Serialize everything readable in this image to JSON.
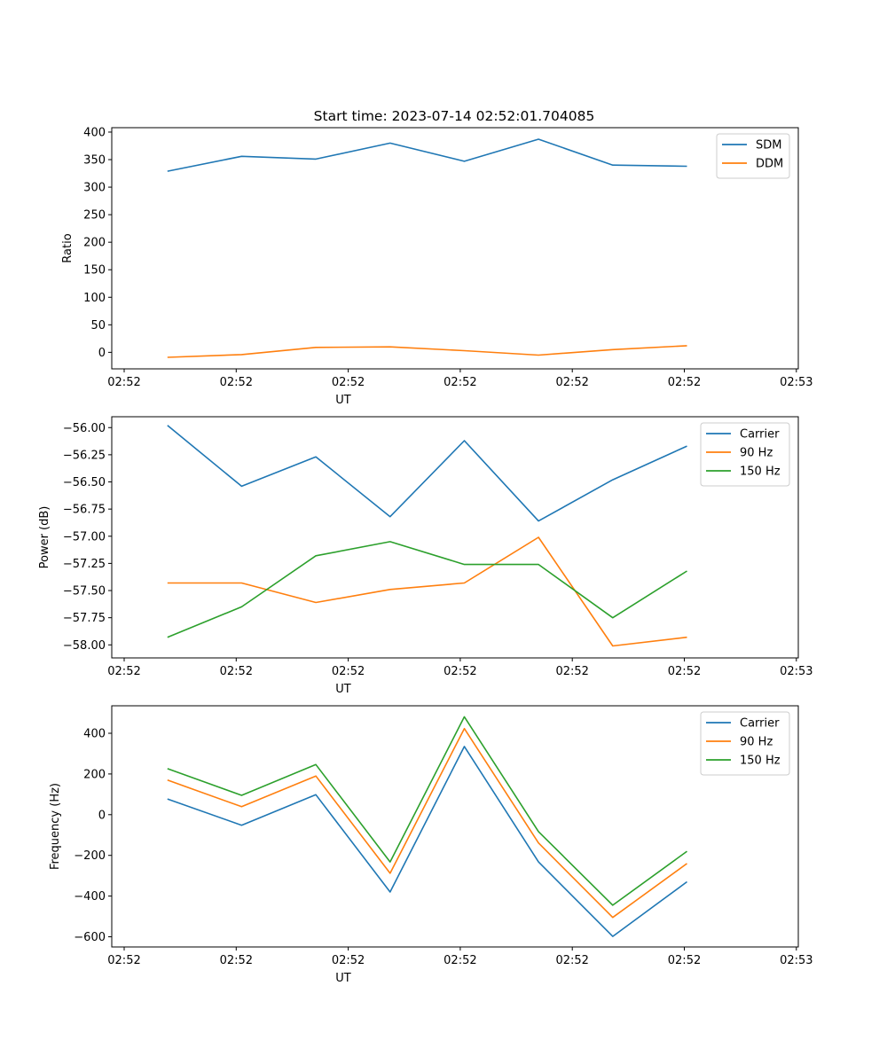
{
  "figure": {
    "title": "Start time: 2023-07-14 02:52:01.704085"
  },
  "chart_data": [
    {
      "type": "line",
      "title": "Start time: 2023-07-14 02:52:01.704085",
      "xlabel": "UT",
      "ylabel": "Ratio",
      "x_tick_labels": [
        "02:52",
        "02:52",
        "02:52",
        "02:52",
        "02:52",
        "02:52",
        "02:53"
      ],
      "x": [
        1,
        2,
        3,
        4,
        5,
        6,
        7,
        8
      ],
      "xlim": [
        0.25,
        9.5
      ],
      "ylim": [
        -30,
        408
      ],
      "y_ticks": [
        0,
        50,
        100,
        150,
        200,
        250,
        300,
        350,
        400
      ],
      "y_tick_labels": [
        "0",
        "50",
        "100",
        "150",
        "200",
        "250",
        "300",
        "350",
        "400"
      ],
      "legend_position": "top-right",
      "series": [
        {
          "name": "SDM",
          "color": "#1f77b4",
          "values": [
            329,
            356,
            351,
            380,
            347,
            387,
            340,
            338
          ]
        },
        {
          "name": "DDM",
          "color": "#ff7f0e",
          "values": [
            -9,
            -4,
            9,
            10,
            3,
            -5,
            5,
            12
          ]
        }
      ]
    },
    {
      "type": "line",
      "title": "",
      "xlabel": "UT",
      "ylabel": "Power (dB)",
      "x_tick_labels": [
        "02:52",
        "02:52",
        "02:52",
        "02:52",
        "02:52",
        "02:52",
        "02:53"
      ],
      "x": [
        1,
        2,
        3,
        4,
        5,
        6,
        7,
        8
      ],
      "xlim": [
        0.25,
        9.5
      ],
      "ylim": [
        -58.12,
        -55.9
      ],
      "y_ticks": [
        -58.0,
        -57.75,
        -57.5,
        -57.25,
        -57.0,
        -56.75,
        -56.5,
        -56.25,
        -56.0
      ],
      "y_tick_labels": [
        "−58.00",
        "−57.75",
        "−57.50",
        "−57.25",
        "−57.00",
        "−56.75",
        "−56.50",
        "−56.25",
        "−56.00"
      ],
      "legend_position": "top-right",
      "series": [
        {
          "name": "Carrier",
          "color": "#1f77b4",
          "values": [
            -55.98,
            -56.54,
            -56.27,
            -56.82,
            -56.12,
            -56.86,
            -56.48,
            -56.17
          ]
        },
        {
          "name": "90 Hz",
          "color": "#ff7f0e",
          "values": [
            -57.43,
            -57.43,
            -57.61,
            -57.49,
            -57.43,
            -57.01,
            -58.01,
            -57.93
          ]
        },
        {
          "name": "150 Hz",
          "color": "#2ca02c",
          "values": [
            -57.93,
            -57.65,
            -57.18,
            -57.05,
            -57.26,
            -57.26,
            -57.75,
            -57.32
          ]
        }
      ]
    },
    {
      "type": "line",
      "title": "",
      "xlabel": "UT",
      "ylabel": "Frequency (Hz)",
      "x_tick_labels": [
        "02:52",
        "02:52",
        "02:52",
        "02:52",
        "02:52",
        "02:52",
        "02:53"
      ],
      "x": [
        1,
        2,
        3,
        4,
        5,
        6,
        7,
        8
      ],
      "xlim": [
        0.25,
        9.5
      ],
      "ylim": [
        -650,
        535
      ],
      "y_ticks": [
        -600,
        -400,
        -200,
        0,
        200,
        400
      ],
      "y_tick_labels": [
        "−600",
        "−400",
        "−200",
        "0",
        "200",
        "400"
      ],
      "legend_position": "top-right",
      "series": [
        {
          "name": "Carrier",
          "color": "#1f77b4",
          "values": [
            77,
            -52,
            98,
            -380,
            335,
            -232,
            -598,
            -330
          ]
        },
        {
          "name": "90 Hz",
          "color": "#ff7f0e",
          "values": [
            170,
            39,
            190,
            -288,
            423,
            -139,
            -505,
            -240
          ]
        },
        {
          "name": "150 Hz",
          "color": "#2ca02c",
          "values": [
            226,
            95,
            246,
            -232,
            481,
            -83,
            -445,
            -180
          ]
        }
      ]
    }
  ]
}
